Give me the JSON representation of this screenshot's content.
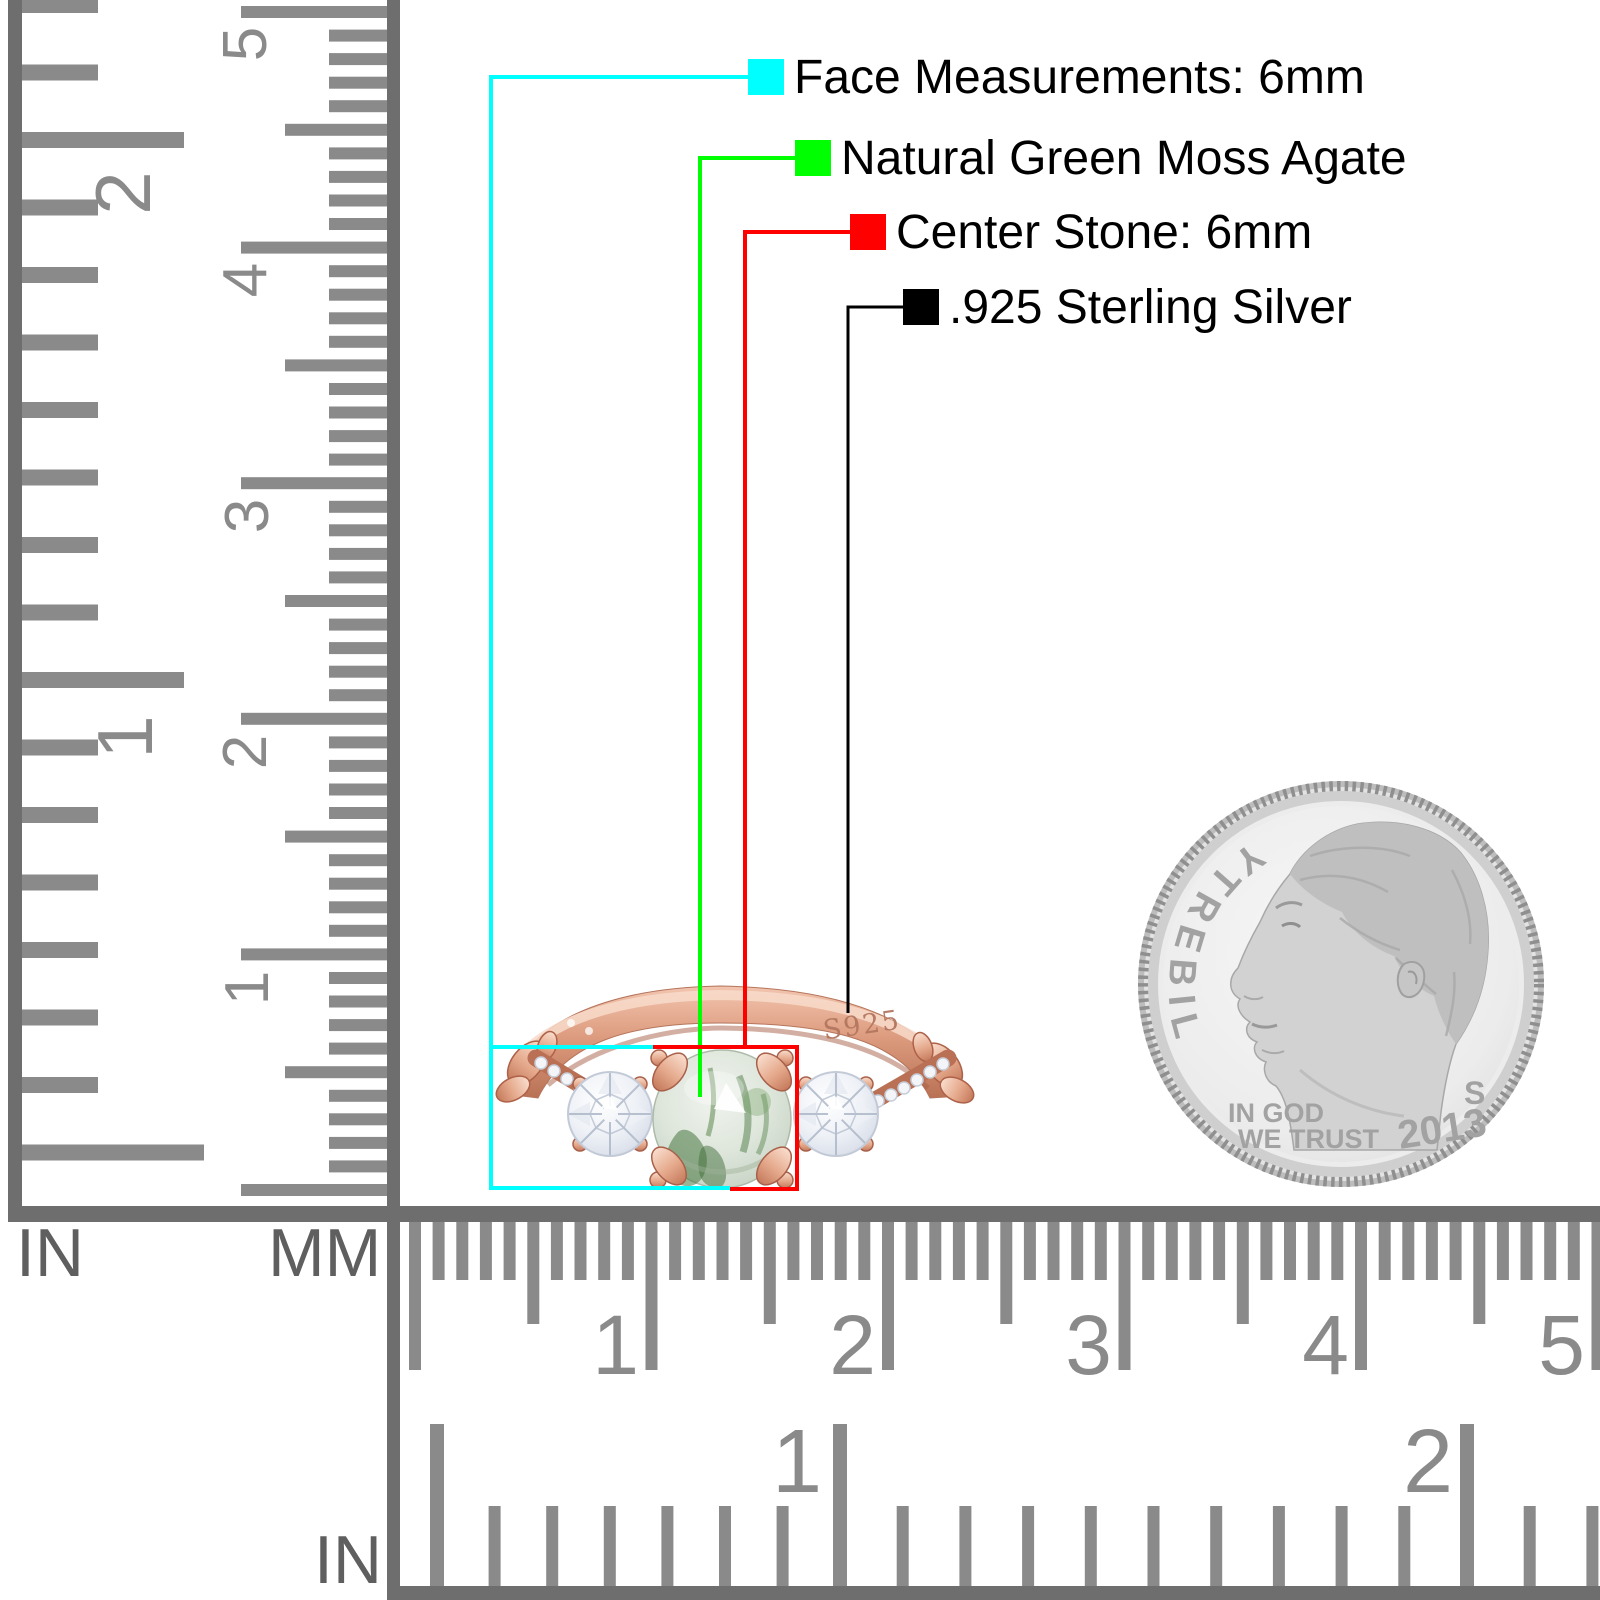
{
  "page": {
    "background": "#ffffff"
  },
  "annotations": {
    "items": [
      {
        "id": "face-measurements",
        "label": "Face Measurements: 6mm",
        "color": "#00ffff"
      },
      {
        "id": "stone-material",
        "label": "Natural Green Moss Agate",
        "color": "#00ff00"
      },
      {
        "id": "center-stone",
        "label": "Center Stone: 6mm",
        "color": "#ff0000"
      },
      {
        "id": "metal",
        "label": ".925 Sterling Silver",
        "color": "#000000"
      }
    ]
  },
  "rulers": {
    "vertical": {
      "inch_labels": [
        "1",
        "2"
      ],
      "cm_labels": [
        "1",
        "2",
        "3",
        "4",
        "5"
      ],
      "unit_inch": "IN",
      "unit_mm": "MM"
    },
    "horizontal": {
      "cm_labels": [
        "1",
        "2",
        "3",
        "4",
        "5"
      ],
      "inch_labels": [
        "1",
        "2"
      ],
      "unit_inch": "IN"
    }
  },
  "ring": {
    "engraving": "S925"
  },
  "coin": {
    "inscription": "LIBERTY",
    "motto_line1": "IN GOD",
    "motto_line2": "WE TRUST",
    "mint_mark": "S",
    "year": "2013"
  },
  "palette": {
    "ruler_tick": "#8a8a8a",
    "ruler_border": "#6e6e6e",
    "rose_gold": "#d89878",
    "agate_green": "#4e7c46",
    "coin_silver": "#d9d9d9"
  }
}
